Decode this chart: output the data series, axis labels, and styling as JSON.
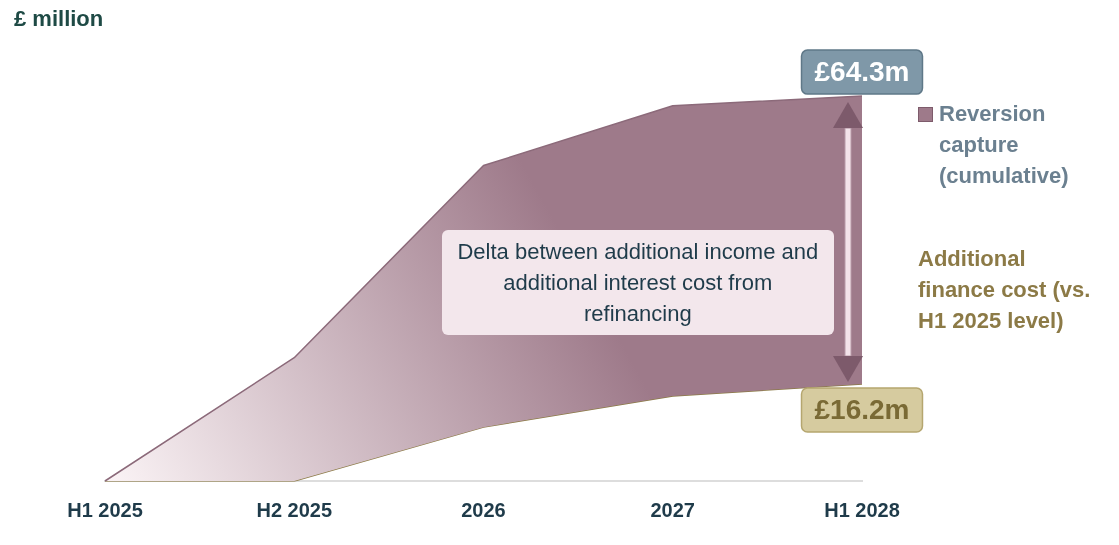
{
  "chart_data": {
    "type": "area",
    "ylabel": "£ million",
    "categories": [
      "H1 2025",
      "H2 2025",
      "2026",
      "2027",
      "H1 2028"
    ],
    "series": [
      {
        "name": "Reversion capture (cumulative)",
        "type": "area",
        "color": "#9e7a8a",
        "values": [
          0,
          20.6,
          52.7,
          62.7,
          64.3
        ],
        "value_labels": [
          null,
          null,
          null,
          null,
          "£64.3m"
        ]
      },
      {
        "name": "Additional finance cost (vs. H1 2025 level)",
        "type": "line",
        "color": "#8c7a46",
        "values": [
          0,
          0,
          9.0,
          14.2,
          16.2
        ],
        "value_labels": [
          null,
          null,
          null,
          null,
          "£16.2m"
        ]
      }
    ],
    "grid": false,
    "legend": "right",
    "marker": "none",
    "annotations": [
      "Delta between additional income and additional interest cost from refinancing"
    ]
  }
}
